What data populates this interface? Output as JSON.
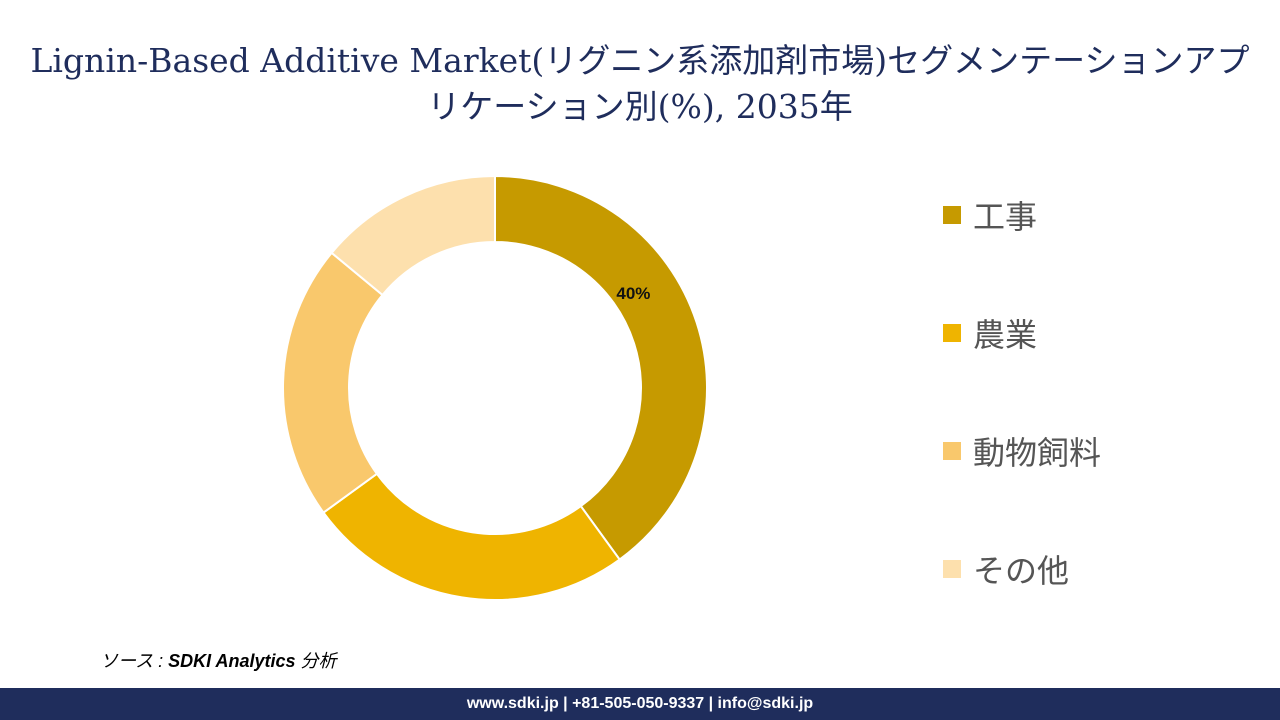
{
  "title": "Lignin-Based Additive Market(リグニン系添加剤市場)セグメンテーションアプリケーション別(%), 2035年",
  "chart_data": {
    "type": "pie",
    "donut": true,
    "categories": [
      "工事",
      "農業",
      "動物飼料",
      "その他"
    ],
    "values": [
      40,
      25,
      21,
      14
    ],
    "colors": [
      "#c69a00",
      "#efb400",
      "#f9c86c",
      "#fde0ad"
    ],
    "data_labels": [
      "40%",
      "",
      "",
      ""
    ],
    "legend_position": "right"
  },
  "source": {
    "prefix": "ソース : ",
    "name": "SDKI Analytics",
    "suffix": " 分析"
  },
  "footer": "www.sdki.jp | +81-505-050-9337 | info@sdki.jp"
}
